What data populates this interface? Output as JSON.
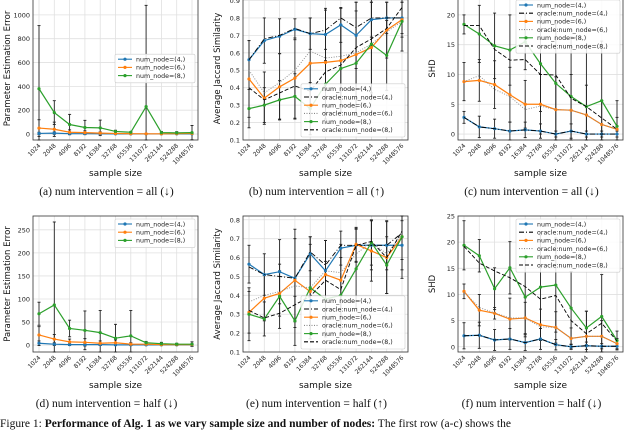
{
  "chart_data": [
    {
      "id": "a",
      "type": "line",
      "caption": "(a) num intervention = all (↓)",
      "xlabel": "sample size",
      "ylabel": "Parameter Estimation Error",
      "categories": [
        "1024",
        "2048",
        "4096",
        "8192",
        "16384",
        "32768",
        "65536",
        "131072",
        "262144",
        "524288",
        "1048576"
      ],
      "ylim": [
        -50,
        1150
      ],
      "yticks": [
        0,
        200,
        400,
        600,
        800,
        1000
      ],
      "grid": true,
      "legend": "center-right",
      "series": [
        {
          "name": "num_node=(4,)",
          "color": "#1f77b4",
          "style": "solid",
          "values": [
            5,
            8,
            3,
            3,
            2,
            1,
            1,
            1,
            1,
            1,
            1
          ],
          "err": [
            10,
            10,
            5,
            5,
            3,
            2,
            2,
            2,
            2,
            2,
            2
          ]
        },
        {
          "name": "num_node=(6,)",
          "color": "#ff7f0e",
          "style": "solid",
          "values": [
            50,
            40,
            15,
            12,
            8,
            5,
            3,
            2,
            2,
            3,
            5
          ],
          "err": [
            70,
            60,
            20,
            15,
            10,
            6,
            4,
            3,
            3,
            4,
            6
          ]
        },
        {
          "name": "num_node=(8,)",
          "color": "#2ca02c",
          "style": "solid",
          "values": [
            380,
            180,
            80,
            55,
            52,
            22,
            15,
            230,
            12,
            10,
            12
          ],
          "err": [
            530,
            100,
            85,
            60,
            65,
            10,
            5,
            850,
            10,
            10,
            60
          ]
        }
      ]
    },
    {
      "id": "b",
      "type": "line",
      "caption": "(b) num intervention = all (↑)",
      "xlabel": "sample size",
      "ylabel": "Average Jaccard Similarity",
      "categories": [
        "1024",
        "2048",
        "4096",
        "8192",
        "16384",
        "32768",
        "65536",
        "131072",
        "262144",
        "524288",
        "1048576"
      ],
      "ylim": [
        0.1,
        0.92
      ],
      "yticks": [
        0.1,
        0.2,
        0.3,
        0.4,
        0.5,
        0.6,
        0.7,
        0.8,
        0.9
      ],
      "grid": true,
      "legend": "lower-right",
      "series": [
        {
          "name": "num_node=(4,)",
          "color": "#1f77b4",
          "style": "solid",
          "values": [
            0.56,
            0.67,
            0.695,
            0.735,
            0.71,
            0.705,
            0.76,
            0.7,
            0.79,
            0.8,
            0.8
          ],
          "err": [
            0.11,
            0.13,
            0.1,
            0.06,
            0.09,
            0.15,
            0.1,
            0.19,
            0.1,
            0.09,
            0.09
          ]
        },
        {
          "name": "oracle:num_node=(4,)",
          "color": "#000000",
          "style": "dashdot",
          "values": [
            0.56,
            0.68,
            0.7,
            0.74,
            0.71,
            0.73,
            0.8,
            0.745,
            0.8,
            0.8,
            0.8
          ]
        },
        {
          "name": "num_node=(6,)",
          "color": "#ff7f0e",
          "style": "solid",
          "values": [
            0.45,
            0.34,
            0.405,
            0.455,
            0.54,
            0.545,
            0.555,
            0.59,
            0.63,
            0.73,
            0.79
          ],
          "err": [
            0.22,
            0.15,
            0.19,
            0.23,
            0.26,
            0.3,
            0.3,
            0.3,
            0.26,
            0.16,
            0.1
          ]
        },
        {
          "name": "oracle:num_node=(6,)",
          "color": "#888888",
          "style": "dotted",
          "values": [
            0.5,
            0.37,
            0.43,
            0.5,
            0.61,
            0.57,
            0.58,
            0.6,
            0.65,
            0.72,
            0.78
          ]
        },
        {
          "name": "num_node=(8,)",
          "color": "#2ca02c",
          "style": "solid",
          "values": [
            0.28,
            0.3,
            0.33,
            0.35,
            0.28,
            0.42,
            0.51,
            0.54,
            0.65,
            0.585,
            0.78
          ],
          "err": [
            0.11,
            0.1,
            0.11,
            0.13,
            0.15,
            0.2,
            0.25,
            0.3,
            0.3,
            0.2,
            0.17
          ]
        },
        {
          "name": "oracle:num_node=(8,)",
          "color": "#000000",
          "style": "dashed",
          "values": [
            0.4,
            0.33,
            0.37,
            0.41,
            0.38,
            0.49,
            0.53,
            0.63,
            0.68,
            0.74,
            0.86
          ]
        }
      ]
    },
    {
      "id": "c",
      "type": "line",
      "caption": "(c) num intervention = all (↓)",
      "xlabel": "sample size",
      "ylabel": "SHD",
      "categories": [
        "1024",
        "2048",
        "4096",
        "8192",
        "16384",
        "32768",
        "65536",
        "131072",
        "262144",
        "524288",
        "1048576"
      ],
      "ylim": [
        -1,
        23
      ],
      "yticks": [
        0,
        5,
        10,
        15,
        20
      ],
      "grid": true,
      "legend": "upper-right",
      "series": [
        {
          "name": "num_node=(4,)",
          "color": "#1f77b4",
          "style": "solid",
          "values": [
            2.8,
            1.2,
            0.9,
            0.5,
            0.7,
            0.5,
            0,
            0.5,
            0,
            0,
            0
          ],
          "err": [
            1,
            1.8,
            1.6,
            1.5,
            1.3,
            1.2,
            0.5,
            1.2,
            0.5,
            0.5,
            0.5
          ]
        },
        {
          "name": "oracle:num_node=(4,)",
          "color": "#000000",
          "style": "dashdot",
          "values": [
            2.8,
            1.2,
            0.9,
            0.5,
            0.7,
            0.5,
            0,
            0.5,
            0,
            0,
            0
          ]
        },
        {
          "name": "num_node=(6,)",
          "color": "#ff7f0e",
          "style": "solid",
          "values": [
            8.8,
            9.0,
            8.3,
            6.6,
            5.0,
            5.0,
            4.1,
            4.0,
            3.2,
            1.6,
            0.8
          ],
          "err": [
            3.2,
            3.5,
            4,
            4.6,
            4,
            5,
            5.5,
            6,
            5,
            4,
            2
          ]
        },
        {
          "name": "oracle:num_node=(6,)",
          "color": "#888888",
          "style": "dotted",
          "values": [
            8.8,
            9.8,
            7.5,
            6.3,
            4.1,
            4.7,
            4.1,
            4.0,
            3.2,
            1.6,
            0.8
          ]
        },
        {
          "name": "num_node=(8,)",
          "color": "#2ca02c",
          "style": "solid",
          "values": [
            18.4,
            16.8,
            14.8,
            14.1,
            15.5,
            11.8,
            8.5,
            6.3,
            4.6,
            5.6,
            1.3
          ],
          "err": [
            1.6,
            4.8,
            5.5,
            5.9,
            4.7,
            8,
            10,
            10,
            10,
            10,
            4.3
          ]
        },
        {
          "name": "oracle:num_node=(8,)",
          "color": "#000000",
          "style": "dashed",
          "values": [
            18.2,
            18.2,
            14.2,
            12.4,
            12.5,
            10,
            9.9,
            6,
            4.6,
            2.7,
            0.8
          ]
        }
      ]
    },
    {
      "id": "d",
      "type": "line",
      "caption": "(d) num intervention = half (↓)",
      "xlabel": "sample size",
      "ylabel": "Parameter Estimation Error",
      "categories": [
        "1024",
        "2048",
        "4096",
        "8192",
        "16384",
        "32768",
        "65536",
        "131072",
        "262144",
        "524288",
        "1048576"
      ],
      "ylim": [
        -15,
        280
      ],
      "yticks": [
        0,
        50,
        100,
        150,
        200,
        250
      ],
      "grid": true,
      "legend": "upper-right",
      "series": [
        {
          "name": "num_node=(4,)",
          "color": "#1f77b4",
          "style": "solid",
          "values": [
            4,
            2,
            1,
            1,
            1,
            0.5,
            0.5,
            0.5,
            0.5,
            0.5,
            0.5
          ],
          "err": [
            5,
            3,
            2,
            2,
            2,
            1,
            1,
            1,
            1,
            1,
            1
          ]
        },
        {
          "name": "num_node=(6,)",
          "color": "#ff7f0e",
          "style": "solid",
          "values": [
            22,
            13,
            7,
            6,
            4,
            5,
            2,
            2,
            1,
            1,
            1
          ],
          "err": [
            18,
            10,
            6,
            8,
            5,
            6,
            3,
            2,
            2,
            2,
            2
          ]
        },
        {
          "name": "num_node=(8,)",
          "color": "#2ca02c",
          "style": "solid",
          "values": [
            68,
            87,
            36,
            32,
            27,
            15,
            20,
            5,
            3,
            2,
            2
          ],
          "err": [
            25,
            180,
            18,
            42,
            48,
            30,
            55,
            3,
            3,
            2,
            5
          ]
        }
      ]
    },
    {
      "id": "e",
      "type": "line",
      "caption": "(e) num intervention = half (↑)",
      "xlabel": "sample size",
      "ylabel": "Average Jaccard Similarity",
      "categories": [
        "1024",
        "2048",
        "4096",
        "8192",
        "16384",
        "32768",
        "65536",
        "131072",
        "262144",
        "524288",
        "1048576"
      ],
      "ylim": [
        0.1,
        0.82
      ],
      "yticks": [
        0.1,
        0.2,
        0.3,
        0.4,
        0.5,
        0.6,
        0.7,
        0.8
      ],
      "grid": true,
      "legend": "lower-right",
      "series": [
        {
          "name": "num_node=(4,)",
          "color": "#1f77b4",
          "style": "solid",
          "values": [
            0.565,
            0.51,
            0.525,
            0.49,
            0.62,
            0.53,
            0.65,
            0.665,
            0.665,
            0.665,
            0.665
          ],
          "err": [
            0.1,
            0.11,
            0.17,
            0.26,
            0.09,
            0.16,
            0.09,
            0.09,
            0.13,
            0.13,
            0.13
          ]
        },
        {
          "name": "oracle:num_node=(4,)",
          "color": "#000000",
          "style": "dashdot",
          "values": [
            0.55,
            0.51,
            0.5,
            0.49,
            0.63,
            0.56,
            0.665,
            0.665,
            0.665,
            0.665,
            0.73
          ]
        },
        {
          "name": "num_node=(6,)",
          "color": "#ff7f0e",
          "style": "solid",
          "values": [
            0.31,
            0.385,
            0.41,
            0.48,
            0.42,
            0.51,
            0.48,
            0.67,
            0.635,
            0.6,
            0.71
          ],
          "err": [
            0.11,
            0.12,
            0.12,
            0.22,
            0.25,
            0.18,
            0.19,
            0.09,
            0.16,
            0.19,
            0.12
          ]
        },
        {
          "name": "oracle:num_node=(6,)",
          "color": "#888888",
          "style": "dotted",
          "values": [
            0.365,
            0.4,
            0.42,
            0.45,
            0.44,
            0.53,
            0.52,
            0.62,
            0.68,
            0.62,
            0.72
          ]
        },
        {
          "name": "num_node=(8,)",
          "color": "#2ca02c",
          "style": "solid",
          "values": [
            0.3,
            0.275,
            0.395,
            0.265,
            0.44,
            0.38,
            0.4,
            0.54,
            0.68,
            0.56,
            0.71
          ],
          "err": [
            0.14,
            0.09,
            0.17,
            0.13,
            0.27,
            0.2,
            0.2,
            0.21,
            0.12,
            0.15,
            0.22
          ]
        },
        {
          "name": "oracle:num_node=(8,)",
          "color": "#000000",
          "style": "dashed",
          "values": [
            0.32,
            0.28,
            0.305,
            0.35,
            0.395,
            0.48,
            0.43,
            0.665,
            0.685,
            0.6,
            0.74
          ]
        }
      ]
    },
    {
      "id": "f",
      "type": "line",
      "caption": "(f) num intervention = half (↓)",
      "xlabel": "sample size",
      "ylabel": "SHD",
      "categories": [
        "1024",
        "2048",
        "4096",
        "8192",
        "16384",
        "32768",
        "65536",
        "131072",
        "262144",
        "524288",
        "1048576"
      ],
      "ylim": [
        -1,
        25
      ],
      "yticks": [
        0,
        5,
        10,
        15,
        20,
        25
      ],
      "grid": true,
      "legend": "upper-right",
      "series": [
        {
          "name": "num_node=(4,)",
          "color": "#1f77b4",
          "style": "solid",
          "values": [
            2.1,
            2.2,
            1.3,
            1.5,
            0.8,
            1.5,
            0.4,
            0,
            0.2,
            0.1,
            0.1
          ],
          "err": [
            2.5,
            2.5,
            2,
            2,
            1.5,
            2,
            1,
            0.5,
            0.7,
            0.5,
            0.5
          ]
        },
        {
          "name": "oracle:num_node=(4,)",
          "color": "#000000",
          "style": "dashdot",
          "values": [
            2.1,
            2.2,
            1.3,
            1.5,
            0.8,
            1.5,
            0.4,
            0,
            0.2,
            0.1,
            0.1
          ]
        },
        {
          "name": "num_node=(6,)",
          "color": "#ff7f0e",
          "style": "solid",
          "values": [
            10.6,
            7.0,
            6.4,
            5.3,
            5.5,
            4.2,
            3.7,
            1.6,
            2.0,
            2.0,
            0.6
          ],
          "err": [
            1.4,
            3,
            1.1,
            4,
            3,
            3,
            3,
            2,
            4.8,
            3,
            1
          ]
        },
        {
          "name": "oracle:num_node=(6,)",
          "color": "#888888",
          "style": "dotted",
          "values": [
            10.5,
            7.5,
            6.5,
            5.5,
            5.5,
            3.8,
            3.7,
            1.6,
            2,
            2,
            0.6
          ]
        },
        {
          "name": "num_node=(8,)",
          "color": "#2ca02c",
          "style": "solid",
          "values": [
            19.4,
            17.4,
            11.1,
            15.1,
            9.5,
            11.4,
            11.8,
            7.4,
            3.6,
            5.8,
            1.2
          ],
          "err": [
            4.7,
            3.1,
            4,
            5,
            7.6,
            10,
            9,
            7,
            3.2,
            8,
            1.8
          ]
        },
        {
          "name": "oracle:num_node=(8,)",
          "color": "#000000",
          "style": "dashed",
          "values": [
            19.2,
            16,
            14.5,
            13.2,
            11.5,
            9.1,
            9.8,
            5,
            2.5,
            4.5,
            1.1
          ]
        }
      ]
    }
  ],
  "figure_caption": {
    "label": "Figure 1:",
    "bold": "Performance of Alg. 1 as we vary sample size and number of nodes:",
    "rest": " The first row (a-c) shows the"
  }
}
